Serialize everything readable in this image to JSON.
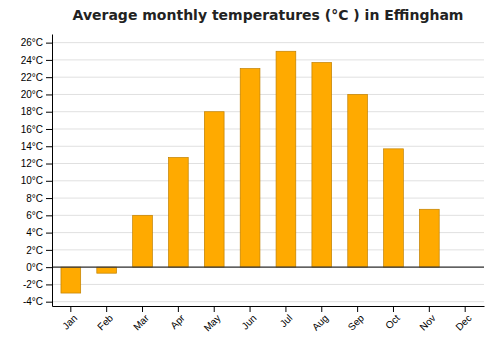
{
  "chart_data": {
    "type": "bar",
    "title": "Average monthly temperatures (°C ) in Effingham",
    "categories": [
      "Jan",
      "Feb",
      "Mar",
      "Apr",
      "May",
      "Jun",
      "Jul",
      "Aug",
      "Sep",
      "Oct",
      "Nov",
      "Dec"
    ],
    "values": [
      -3.0,
      -0.7,
      6.0,
      12.7,
      18.0,
      23.0,
      25.0,
      23.7,
      20.0,
      13.7,
      6.7,
      0.0
    ],
    "color": "#FFAA00",
    "ylim": [
      -4.5,
      27
    ],
    "yticks": [
      {
        "value": -4,
        "label": "-4°C"
      },
      {
        "value": -2,
        "label": "-2°C"
      },
      {
        "value": 0,
        "label": "0°C"
      },
      {
        "value": 2,
        "label": "2°C"
      },
      {
        "value": 4,
        "label": "4°C"
      },
      {
        "value": 6,
        "label": "6°C"
      },
      {
        "value": 8,
        "label": "8°C"
      },
      {
        "value": 10,
        "label": "10°C"
      },
      {
        "value": 12,
        "label": "12°C"
      },
      {
        "value": 14,
        "label": "14°C"
      },
      {
        "value": 16,
        "label": "16°C"
      },
      {
        "value": 18,
        "label": "18°C"
      },
      {
        "value": 20,
        "label": "20°C"
      },
      {
        "value": 22,
        "label": "22°C"
      },
      {
        "value": 24,
        "label": "24°C"
      },
      {
        "value": 26,
        "label": "26°C"
      }
    ],
    "grid": true
  }
}
